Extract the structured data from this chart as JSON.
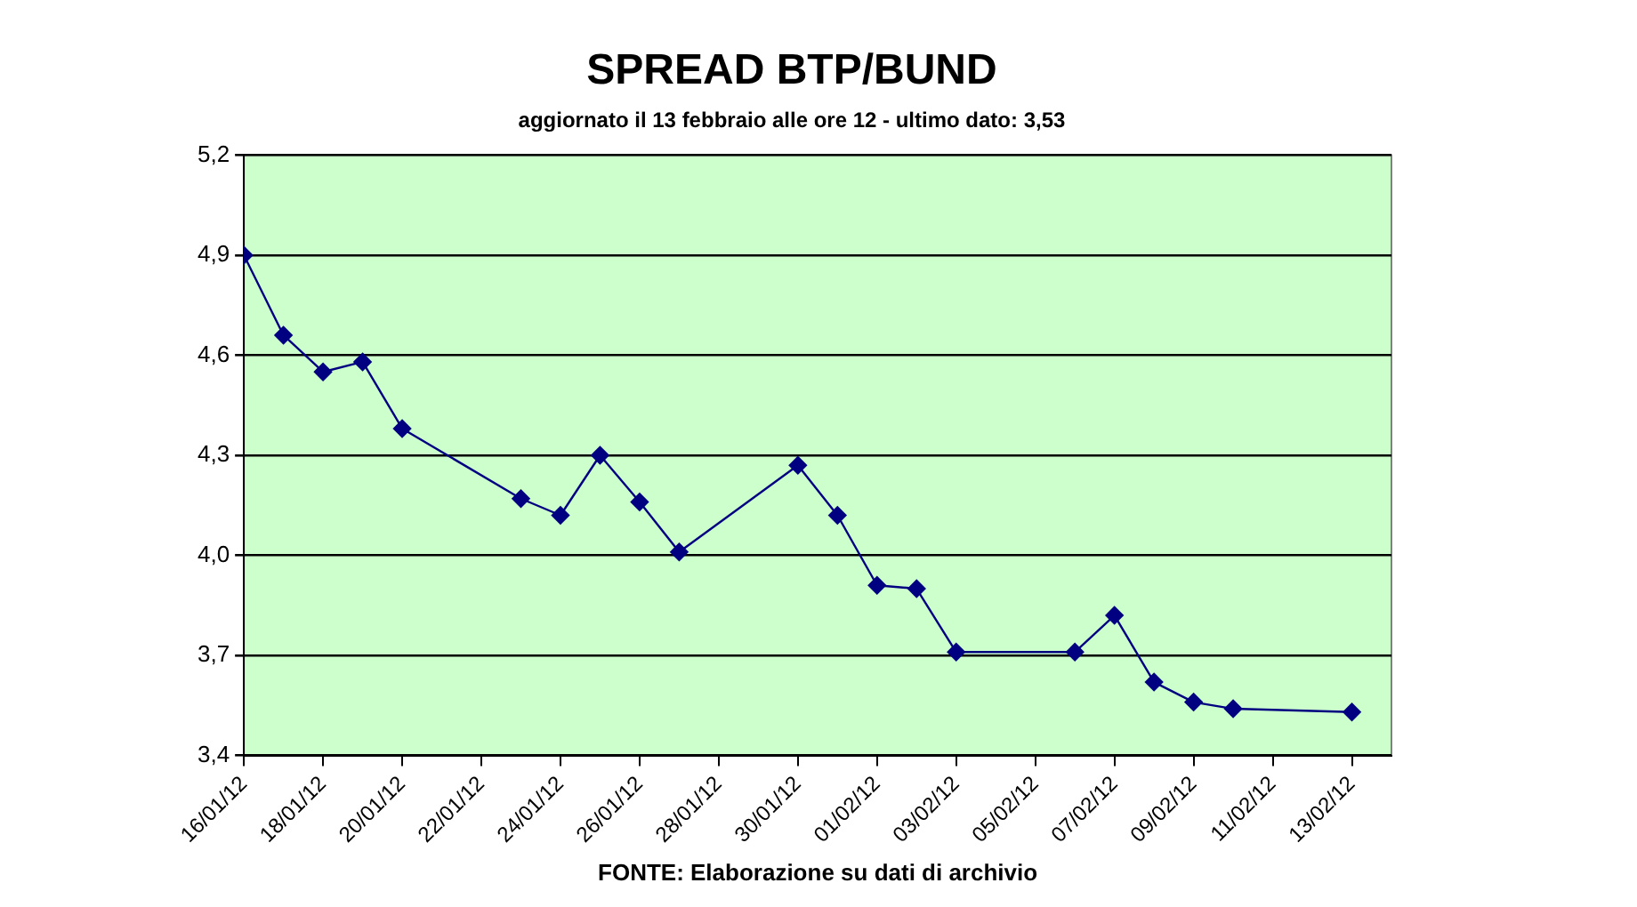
{
  "chart_data": {
    "type": "line",
    "title": "SPREAD BTP/BUND",
    "subtitle": "aggiornato il 13 febbraio alle ore 12 - ultimo dato: 3,53",
    "x": [
      "--01-16",
      "--01-17",
      "--01-18",
      "--01-19",
      "--01-20",
      "--01-23",
      "--01-24",
      "--01-25",
      "--01-26",
      "--01-27",
      "--01-30",
      "--01-31",
      "--02-01",
      "--02-02",
      "--02-03",
      "--02-06",
      "--02-07",
      "--02-08",
      "--02-09",
      "--02-10",
      "--02-13"
    ],
    "series": [
      {
        "color": "#000080",
        "values": [
          4.9,
          4.66,
          4.55,
          4.58,
          4.38,
          4.17,
          4.12,
          4.3,
          4.16,
          4.01,
          4.27,
          4.12,
          3.91,
          3.9,
          3.71,
          3.71,
          3.82,
          3.62,
          3.56,
          3.54,
          3.53
        ]
      }
    ],
    "xlim": [
      "--01-16",
      "--02-14"
    ],
    "xticks": [
      {
        "value": "--01-16",
        "label": "16/01/12"
      },
      {
        "value": "--01-18",
        "label": "18/01/12"
      },
      {
        "value": "--01-20",
        "label": "20/01/12"
      },
      {
        "value": "--01-22",
        "label": "22/01/12"
      },
      {
        "value": "--01-24",
        "label": "24/01/12"
      },
      {
        "value": "--01-26",
        "label": "26/01/12"
      },
      {
        "value": "--01-28",
        "label": "28/01/12"
      },
      {
        "value": "--01-30",
        "label": "30/01/12"
      },
      {
        "value": "--02-01",
        "label": "01/02/12"
      },
      {
        "value": "--02-03",
        "label": "03/02/12"
      },
      {
        "value": "--02-05",
        "label": "05/02/12"
      },
      {
        "value": "--02-07",
        "label": "07/02/12"
      },
      {
        "value": "--02-09",
        "label": "09/02/12"
      },
      {
        "value": "--02-11",
        "label": "11/02/12"
      },
      {
        "value": "--02-13",
        "label": "13/02/12"
      }
    ],
    "ylim": [
      3.4,
      5.2
    ],
    "yticks": [
      {
        "value": 3.4,
        "label": "3,4"
      },
      {
        "value": 3.7,
        "label": "3,7"
      },
      {
        "value": 4.0,
        "label": "4,0"
      },
      {
        "value": 4.3,
        "label": "4,3"
      },
      {
        "value": 4.6,
        "label": "4,6"
      },
      {
        "value": 4.9,
        "label": "4,9"
      },
      {
        "value": 5.2,
        "label": "5,2"
      }
    ],
    "grid": "y",
    "marker": "diamond",
    "line_style": "solid",
    "annotations": [
      "FONTE: Elaborazione su dati di archivio"
    ]
  }
}
